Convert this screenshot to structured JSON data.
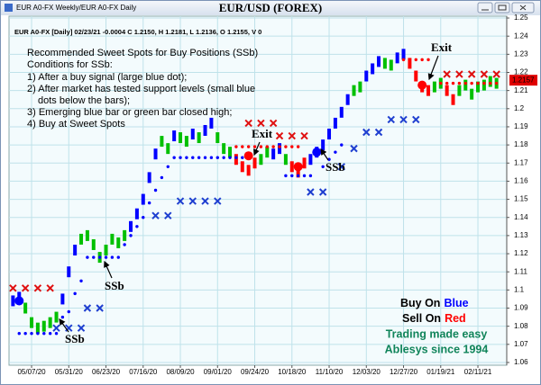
{
  "window_title": "EUR A0-FX Weekly/EUR A0-FX Daily",
  "chart_data": {
    "type": "price",
    "title": "EUR/USD (FOREX)",
    "info": "EUR A0-FX [Daily] 02/23/21 -0.0004 C 1.2150, H 1.2181, L 1.2136, O 1.2155, V 0",
    "notes": [
      "Recommended Sweet Spots for Buy Positions (SSb)",
      "Conditions for SSb:",
      "1) After a buy signal (large blue dot);",
      "2) After market has tested support levels (small blue",
      "dots below the bars);",
      "3) Emerging blue bar or green bar closed high;",
      "4) Buy at Sweet Spots"
    ],
    "annotations": [
      "SSb",
      "SSb",
      "SSb",
      "Exit",
      "Exit"
    ],
    "branding": [
      "Buy On",
      "Blue",
      "Sell On",
      "Red",
      "Trading made easy",
      "Ablesys since 1994"
    ],
    "last_price": 1.2157,
    "xlim": [
      -0.64,
      79.65
    ],
    "xticks": [
      {
        "value": 3,
        "label": "05/07/20"
      },
      {
        "value": 9,
        "label": "05/31/20"
      },
      {
        "value": 15,
        "label": "06/23/20"
      },
      {
        "value": 21,
        "label": "07/16/20"
      },
      {
        "value": 27,
        "label": "08/09/20"
      },
      {
        "value": 33,
        "label": "09/01/20"
      },
      {
        "value": 39,
        "label": "09/24/20"
      },
      {
        "value": 45,
        "label": "10/18/20"
      },
      {
        "value": 51,
        "label": "11/10/20"
      },
      {
        "value": 57,
        "label": "12/03/20"
      },
      {
        "value": 63,
        "label": "12/27/20"
      },
      {
        "value": 69,
        "label": "01/19/21"
      },
      {
        "value": 75,
        "label": "02/11/21"
      }
    ],
    "ylim": [
      1.058,
      1.252
    ],
    "yticks": [
      1.06,
      1.07,
      1.08,
      1.09,
      1.1,
      1.11,
      1.12,
      1.13,
      1.14,
      1.15,
      1.16,
      1.17,
      1.18,
      1.19,
      1.2,
      1.21,
      1.22,
      1.23,
      1.24,
      1.25
    ],
    "grid": true,
    "series": [
      {
        "marker": "bar",
        "color": "#0000ff",
        "x": [
          0,
          1,
          8,
          9,
          10,
          19,
          20,
          21,
          22,
          23,
          26,
          29,
          31,
          32,
          42,
          43,
          48,
          49,
          50,
          51,
          52,
          53,
          54,
          57,
          58,
          59,
          62,
          63
        ],
        "values": [
          1.094,
          1.096,
          1.095,
          1.11,
          1.122,
          1.135,
          1.142,
          1.15,
          1.162,
          1.175,
          1.185,
          1.186,
          1.188,
          1.192,
          1.175,
          1.178,
          1.172,
          1.176,
          1.18,
          1.186,
          1.192,
          1.198,
          1.205,
          1.218,
          1.222,
          1.226,
          1.228,
          1.23
        ]
      },
      {
        "marker": "bar",
        "color": "#ff0000",
        "x": [
          36,
          37,
          38,
          39,
          45,
          46,
          47,
          64,
          65,
          66,
          67,
          70,
          71
        ],
        "values": [
          1.172,
          1.168,
          1.166,
          1.17,
          1.168,
          1.165,
          1.17,
          1.225,
          1.218,
          1.212,
          1.21,
          1.21,
          1.205
        ]
      },
      {
        "marker": "bar",
        "color": "#00c000",
        "x": [
          2,
          3,
          4,
          5,
          6,
          7,
          11,
          12,
          13,
          14,
          15,
          16,
          17,
          18,
          24,
          25,
          27,
          28,
          30,
          33,
          34,
          35,
          40,
          41,
          44,
          55,
          56,
          60,
          61,
          68,
          69,
          72,
          73,
          74,
          75,
          76,
          77,
          78
        ],
        "values": [
          1.09,
          1.082,
          1.079,
          1.08,
          1.082,
          1.085,
          1.128,
          1.13,
          1.125,
          1.118,
          1.122,
          1.128,
          1.126,
          1.13,
          1.182,
          1.178,
          1.184,
          1.182,
          1.184,
          1.184,
          1.178,
          1.176,
          1.172,
          1.176,
          1.172,
          1.21,
          1.212,
          1.225,
          1.224,
          1.212,
          1.214,
          1.21,
          1.213,
          1.208,
          1.212,
          1.213,
          1.215,
          1.214
        ]
      },
      {
        "marker": "dot",
        "color": "#0000ff",
        "x": [
          1,
          2,
          3,
          4,
          5,
          6,
          7,
          8,
          9,
          10,
          11,
          12,
          13,
          14,
          15,
          16,
          17,
          18,
          19,
          20,
          21,
          22,
          23,
          24,
          25,
          26,
          27,
          28,
          29,
          30,
          31,
          32,
          33,
          34,
          35,
          36,
          37,
          38,
          44,
          45,
          46,
          47,
          48,
          50,
          51,
          52,
          53
        ],
        "values": [
          1.076,
          1.076,
          1.076,
          1.076,
          1.076,
          1.076,
          1.076,
          1.085,
          1.088,
          1.098,
          1.105,
          1.118,
          1.118,
          1.118,
          1.118,
          1.118,
          1.118,
          1.125,
          1.13,
          1.135,
          1.14,
          1.148,
          1.155,
          1.162,
          1.168,
          1.173,
          1.173,
          1.173,
          1.173,
          1.173,
          1.173,
          1.173,
          1.173,
          1.173,
          1.173,
          1.173,
          1.173,
          1.173,
          1.163,
          1.163,
          1.163,
          1.163,
          1.163,
          1.168,
          1.172,
          1.176,
          1.18
        ]
      },
      {
        "marker": "dot",
        "color": "#ff0000",
        "x": [
          36,
          37,
          38,
          39,
          40,
          41,
          42,
          43,
          44,
          45,
          46,
          63,
          64,
          65,
          66,
          67,
          69,
          70,
          71,
          72,
          73,
          74,
          75,
          76,
          77,
          78
        ],
        "values": [
          1.179,
          1.179,
          1.179,
          1.179,
          1.179,
          1.179,
          1.179,
          1.179,
          1.179,
          1.179,
          1.179,
          1.227,
          1.227,
          1.227,
          1.227,
          1.227,
          1.214,
          1.214,
          1.214,
          1.214,
          1.214,
          1.214,
          1.214,
          1.214,
          1.214,
          1.214
        ]
      },
      {
        "marker": "x",
        "color": "#1f3fd0",
        "x": [
          7,
          9,
          11,
          12,
          14,
          23,
          25,
          27,
          29,
          31,
          33,
          48,
          50,
          53,
          55,
          57,
          59,
          61,
          63,
          65
        ],
        "values": [
          1.079,
          1.079,
          1.079,
          1.09,
          1.09,
          1.141,
          1.141,
          1.149,
          1.149,
          1.149,
          1.149,
          1.154,
          1.154,
          1.168,
          1.178,
          1.187,
          1.187,
          1.194,
          1.194,
          1.194
        ]
      },
      {
        "marker": "x",
        "color": "#e01010",
        "x": [
          0,
          2,
          4,
          6,
          38,
          40,
          42,
          43,
          45,
          47,
          70,
          72,
          74,
          76,
          78
        ],
        "values": [
          1.101,
          1.101,
          1.101,
          1.101,
          1.192,
          1.192,
          1.192,
          1.185,
          1.185,
          1.185,
          1.219,
          1.219,
          1.219,
          1.219,
          1.219
        ]
      },
      {
        "marker": "big-dot",
        "color": "#0000ff",
        "x": [
          1,
          49
        ],
        "values": [
          1.094,
          1.176
        ]
      },
      {
        "marker": "big-dot",
        "color": "#ff0000",
        "x": [
          38,
          46,
          66
        ],
        "values": [
          1.174,
          1.168,
          1.213
        ]
      }
    ]
  }
}
